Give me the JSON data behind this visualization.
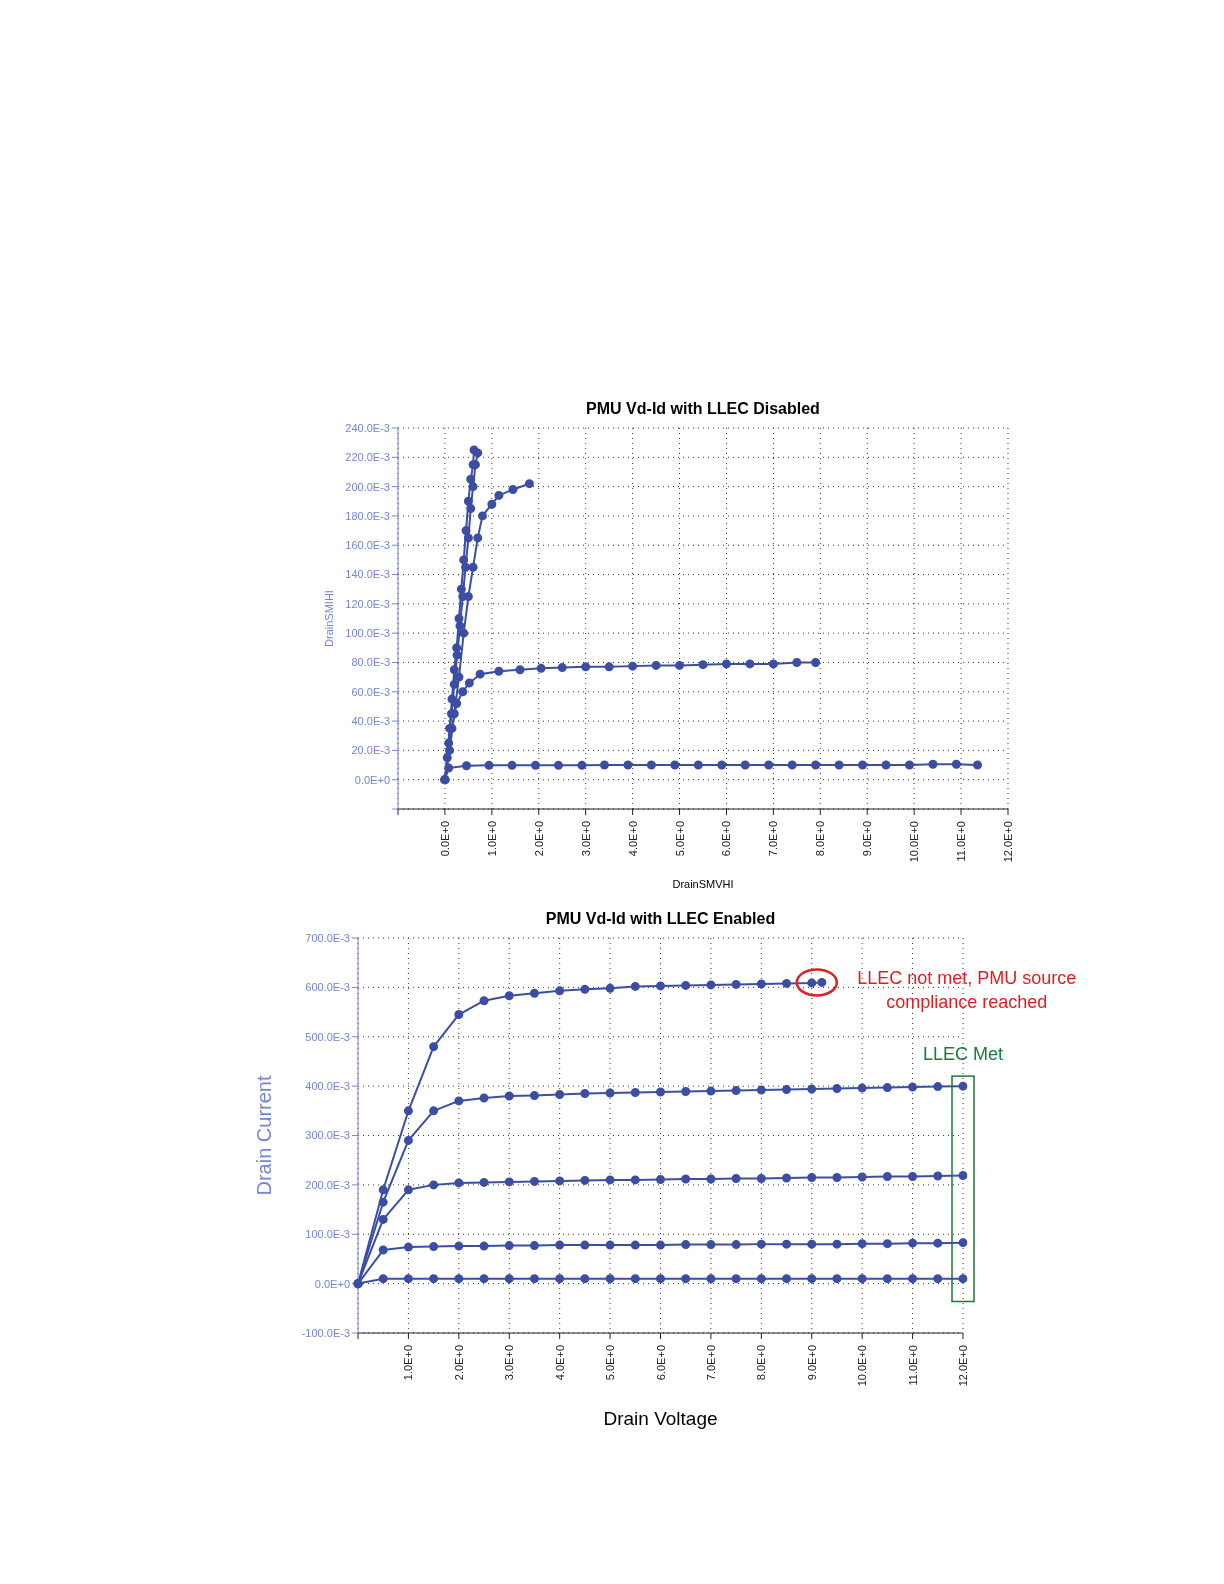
{
  "chart_data": [
    {
      "type": "line",
      "title": "PMU Vd-Id with LLEC Disabled",
      "xlabel": "DrainSMVHI",
      "ylabel": "DrainSMIHI",
      "marker": "circle",
      "grid": true,
      "legend": false,
      "xlim": [
        -1,
        12
      ],
      "xticks": [
        {
          "value": -1,
          "label": null
        },
        {
          "value": 0,
          "label": "0.0E+0"
        },
        {
          "value": 1,
          "label": "1.0E+0"
        },
        {
          "value": 2,
          "label": "2.0E+0"
        },
        {
          "value": 3,
          "label": "3.0E+0"
        },
        {
          "value": 4,
          "label": "4.0E+0"
        },
        {
          "value": 5,
          "label": "5.0E+0"
        },
        {
          "value": 6,
          "label": "6.0E+0"
        },
        {
          "value": 7,
          "label": "7.0E+0"
        },
        {
          "value": 8,
          "label": "8.0E+0"
        },
        {
          "value": 9,
          "label": "9.0E+0"
        },
        {
          "value": 10,
          "label": "10.0E+0"
        },
        {
          "value": 11,
          "label": "11.0E+0"
        },
        {
          "value": 12,
          "label": "12.0E+0"
        }
      ],
      "ylim": [
        -0.02,
        0.24
      ],
      "yticks": [
        {
          "value": -0.02,
          "label": null
        },
        {
          "value": 0,
          "label": "0.0E+0"
        },
        {
          "value": 0.02,
          "label": "20.0E-3"
        },
        {
          "value": 0.04,
          "label": "40.0E-3"
        },
        {
          "value": 0.06,
          "label": "60.0E-3"
        },
        {
          "value": 0.08,
          "label": "80.0E-3"
        },
        {
          "value": 0.1,
          "label": "100.0E-3"
        },
        {
          "value": 0.12,
          "label": "120.0E-3"
        },
        {
          "value": 0.14,
          "label": "140.0E-3"
        },
        {
          "value": 0.16,
          "label": "160.0E-3"
        },
        {
          "value": 0.18,
          "label": "180.0E-3"
        },
        {
          "value": 0.2,
          "label": "200.0E-3"
        },
        {
          "value": 0.22,
          "label": "220.0E-3"
        },
        {
          "value": 0.24,
          "label": "240.0E-3"
        }
      ],
      "series": [
        {
          "color": "#3b4ea3",
          "x": [
            0,
            0.08,
            0.46,
            0.94,
            1.43,
            1.93,
            2.42,
            2.92,
            3.4,
            3.9,
            4.4,
            4.9,
            5.4,
            5.9,
            6.4,
            6.9,
            7.4,
            7.9,
            8.4,
            8.9,
            9.4,
            9.9,
            10.4,
            10.9,
            11.35
          ],
          "values": [
            0,
            0.008,
            0.0095,
            0.0098,
            0.0098,
            0.0098,
            0.0098,
            0.0098,
            0.01,
            0.01,
            0.01,
            0.01,
            0.01,
            0.01,
            0.01,
            0.01,
            0.01,
            0.01,
            0.01,
            0.01,
            0.01,
            0.01,
            0.0105,
            0.0105,
            0.01
          ]
        },
        {
          "color": "#3b4ea3",
          "x": [
            0,
            0.15,
            0.25,
            0.38,
            0.52,
            0.75,
            1.15,
            1.6,
            2.05,
            2.5,
            3.0,
            3.5,
            4.0,
            4.5,
            5.0,
            5.5,
            6.0,
            6.5,
            7.0,
            7.5,
            7.9
          ],
          "values": [
            0,
            0.035,
            0.052,
            0.06,
            0.066,
            0.072,
            0.074,
            0.075,
            0.076,
            0.0765,
            0.077,
            0.077,
            0.0775,
            0.078,
            0.078,
            0.0785,
            0.079,
            0.079,
            0.079,
            0.08,
            0.08
          ]
        },
        {
          "color": "#3b4ea3",
          "x": [
            0,
            0.1,
            0.2,
            0.3,
            0.4,
            0.5,
            0.6,
            0.7,
            0.8,
            1.0,
            1.15,
            1.45,
            1.8
          ],
          "values": [
            0,
            0.02,
            0.045,
            0.07,
            0.1,
            0.125,
            0.145,
            0.165,
            0.18,
            0.188,
            0.194,
            0.198,
            0.202
          ]
        },
        {
          "color": "#3b4ea3",
          "x": [
            0,
            0.05,
            0.1,
            0.15,
            0.2,
            0.25,
            0.3,
            0.35,
            0.4,
            0.45,
            0.5,
            0.55,
            0.6,
            0.62
          ],
          "values": [
            0,
            0.015,
            0.035,
            0.055,
            0.075,
            0.09,
            0.11,
            0.13,
            0.15,
            0.17,
            0.19,
            0.205,
            0.215,
            0.225
          ]
        },
        {
          "color": "#3b4ea3",
          "x": [
            0,
            0.08,
            0.14,
            0.2,
            0.26,
            0.32,
            0.38,
            0.44,
            0.5,
            0.55,
            0.6,
            0.65,
            0.7
          ],
          "values": [
            0,
            0.025,
            0.045,
            0.065,
            0.085,
            0.105,
            0.125,
            0.145,
            0.165,
            0.185,
            0.2,
            0.215,
            0.223
          ]
        }
      ]
    },
    {
      "type": "line",
      "title": "PMU Vd-Id with LLEC Enabled",
      "xlabel": "Drain Voltage",
      "ylabel": "Drain Current",
      "marker": "circle",
      "grid": true,
      "legend": false,
      "xlim": [
        0,
        12
      ],
      "xticks": [
        {
          "value": 0,
          "label": null
        },
        {
          "value": 1,
          "label": "1.0E+0"
        },
        {
          "value": 2,
          "label": "2.0E+0"
        },
        {
          "value": 3,
          "label": "3.0E+0"
        },
        {
          "value": 4,
          "label": "4.0E+0"
        },
        {
          "value": 5,
          "label": "5.0E+0"
        },
        {
          "value": 6,
          "label": "6.0E+0"
        },
        {
          "value": 7,
          "label": "7.0E+0"
        },
        {
          "value": 8,
          "label": "8.0E+0"
        },
        {
          "value": 9,
          "label": "9.0E+0"
        },
        {
          "value": 10,
          "label": "10.0E+0"
        },
        {
          "value": 11,
          "label": "11.0E+0"
        },
        {
          "value": 12,
          "label": "12.0E+0"
        }
      ],
      "ylim": [
        -0.1,
        0.7
      ],
      "yticks": [
        {
          "value": -0.1,
          "label": "-100.0E-3"
        },
        {
          "value": 0,
          "label": "0.0E+0"
        },
        {
          "value": 0.1,
          "label": "100.0E-3"
        },
        {
          "value": 0.2,
          "label": "200.0E-3"
        },
        {
          "value": 0.3,
          "label": "300.0E-3"
        },
        {
          "value": 0.4,
          "label": "400.0E-3"
        },
        {
          "value": 0.5,
          "label": "500.0E-3"
        },
        {
          "value": 0.6,
          "label": "600.0E-3"
        },
        {
          "value": 0.7,
          "label": "700.0E-3"
        }
      ],
      "annotations": [
        {
          "text": "LLEC not met, PMU source compliance reached",
          "x": 9.1,
          "y": 0.61
        },
        {
          "text": "LLEC Met",
          "x": 12,
          "y": 0.4
        }
      ],
      "series": [
        {
          "color": "#3b4ea3",
          "x": [
            0,
            0.5,
            1,
            1.5,
            2,
            2.5,
            3,
            3.5,
            4,
            4.5,
            5,
            5.5,
            6,
            6.5,
            7,
            7.5,
            8,
            8.5,
            9,
            9.2
          ],
          "values": [
            0,
            0.19,
            0.35,
            0.48,
            0.545,
            0.573,
            0.583,
            0.588,
            0.593,
            0.596,
            0.598,
            0.602,
            0.603,
            0.604,
            0.605,
            0.606,
            0.607,
            0.608,
            0.609,
            0.61
          ]
        },
        {
          "color": "#3b4ea3",
          "x": [
            0,
            0.5,
            1,
            1.5,
            2,
            2.5,
            3,
            3.5,
            4,
            4.5,
            5,
            5.5,
            6,
            6.5,
            7,
            7.5,
            8,
            8.5,
            9,
            9.5,
            10,
            10.5,
            11,
            11.5,
            12
          ],
          "values": [
            0,
            0.165,
            0.29,
            0.35,
            0.37,
            0.376,
            0.38,
            0.381,
            0.383,
            0.385,
            0.386,
            0.387,
            0.388,
            0.389,
            0.39,
            0.391,
            0.392,
            0.393,
            0.394,
            0.395,
            0.396,
            0.397,
            0.398,
            0.399,
            0.4
          ]
        },
        {
          "color": "#3b4ea3",
          "x": [
            0,
            0.5,
            1,
            1.5,
            2,
            2.5,
            3,
            3.5,
            4,
            4.5,
            5,
            5.5,
            6,
            6.5,
            7,
            7.5,
            8,
            8.5,
            9,
            9.5,
            10,
            10.5,
            11,
            11.5,
            12
          ],
          "values": [
            0,
            0.13,
            0.19,
            0.2,
            0.204,
            0.205,
            0.206,
            0.207,
            0.208,
            0.209,
            0.21,
            0.21,
            0.211,
            0.212,
            0.212,
            0.213,
            0.213,
            0.214,
            0.215,
            0.215,
            0.216,
            0.217,
            0.217,
            0.218,
            0.219
          ]
        },
        {
          "color": "#3b4ea3",
          "x": [
            0,
            0.5,
            1,
            1.5,
            2,
            2.5,
            3,
            3.5,
            4,
            4.5,
            5,
            5.5,
            6,
            6.5,
            7,
            7.5,
            8,
            8.5,
            9,
            9.5,
            10,
            10.5,
            11,
            11.5,
            12
          ],
          "values": [
            0,
            0.068,
            0.074,
            0.075,
            0.076,
            0.076,
            0.077,
            0.077,
            0.078,
            0.078,
            0.078,
            0.078,
            0.078,
            0.079,
            0.079,
            0.079,
            0.08,
            0.08,
            0.08,
            0.08,
            0.081,
            0.081,
            0.082,
            0.082,
            0.083
          ]
        },
        {
          "color": "#3b4ea3",
          "x": [
            0,
            0.5,
            1,
            1.5,
            2,
            2.5,
            3,
            3.5,
            4,
            4.5,
            5,
            5.5,
            6,
            6.5,
            7,
            7.5,
            8,
            8.5,
            9,
            9.5,
            10,
            10.5,
            11,
            11.5,
            12
          ],
          "values": [
            0,
            0.01,
            0.01,
            0.01,
            0.01,
            0.01,
            0.01,
            0.01,
            0.01,
            0.01,
            0.01,
            0.01,
            0.01,
            0.01,
            0.01,
            0.01,
            0.01,
            0.01,
            0.01,
            0.01,
            0.01,
            0.01,
            0.01,
            0.01,
            0.01
          ]
        }
      ]
    }
  ]
}
